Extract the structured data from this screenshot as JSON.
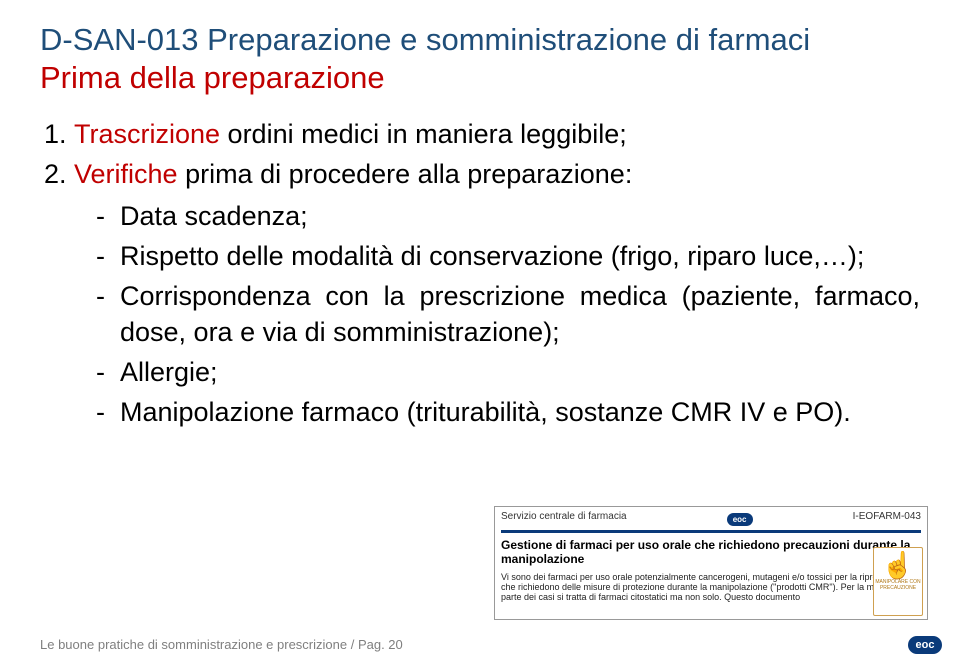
{
  "colors": {
    "heading": "#1f4e79",
    "accent": "#c00000",
    "footer_text": "#7f7f7f",
    "logo_bg": "#0a3a7a",
    "logo_text": "#ffffff",
    "snippet_border": "#999999",
    "snippet_rule": "#0a3a7a",
    "hand_border": "#cfa050",
    "hand_glyph": "#e2a23a",
    "hand_label": "#b07818"
  },
  "typography": {
    "title_fontsize": 31,
    "body_fontsize": 27,
    "footer_fontsize": 13,
    "snippet_title_fontsize": 12,
    "snippet_body_fontsize": 9,
    "font_family": "Arial"
  },
  "title_line1": "D-SAN-013 Preparazione e somministrazione di farmaci",
  "title_line2": "Prima della preparazione",
  "items": [
    {
      "lead": "Trascrizione",
      "rest": " ordini medici in maniera leggibile;"
    },
    {
      "lead": "Verifiche",
      "rest": " prima di procedere alla preparazione:",
      "sub": [
        "Data scadenza;",
        "Rispetto delle modalità di conservazione (frigo, riparo luce,…);",
        "Corrispondenza con la prescrizione medica (paziente, farmaco, dose, ora e via di somministrazione);",
        "Allergie;",
        "Manipolazione farmaco (triturabilità, sostanze CMR IV e PO)."
      ]
    }
  ],
  "snippet": {
    "service": "Servizio centrale di farmacia",
    "code": "I-EOFARM-043",
    "eoc": "eoc",
    "title": "Gestione di farmaci per uso orale che richiedono precauzioni durante la manipolazione",
    "text": "Vi sono dei farmaci per uso orale potenzialmente cancerogeni, mutageni e/o tossici per la riproduzione che richiedono delle misure di protezione durante la manipolazione (\"prodotti CMR\"). Per la maggior parte dei casi si tratta di farmaci citostatici ma non solo. Questo documento",
    "hand_label": "MANIPOLARE CON PRECAUZIONE",
    "hand_glyph": "☝"
  },
  "footer": {
    "text": "Le buone pratiche di somministrazione e prescrizione / Pag. 20",
    "logo": "eoc"
  }
}
